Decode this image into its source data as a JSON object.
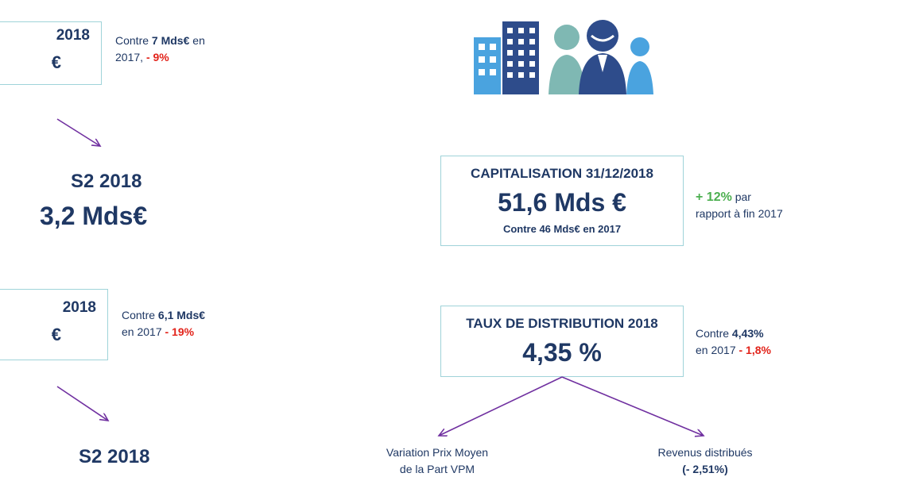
{
  "left": {
    "box1": {
      "title": "2018",
      "value": "€"
    },
    "note1": {
      "prefix": "Contre ",
      "amount": "7 Mds€",
      "mid": " en",
      "line2": "2017, ",
      "delta": "- 9%"
    },
    "s2_1": {
      "label": "S2 2018",
      "value": "3,2 Mds€"
    },
    "box2": {
      "title": "2018",
      "value": "€"
    },
    "note2": {
      "prefix": "Contre ",
      "amount": "6,1 Mds€",
      "line2": "en 2017 ",
      "delta": "- 19%"
    },
    "s2_2": {
      "label": "S2 2018"
    }
  },
  "capitalisation": {
    "title": "CAPITALISATION 31/12/2018",
    "value": "51,6 Mds €",
    "sub": "Contre 46 Mds€ en 2017",
    "note": {
      "delta": "+ 12%",
      "rest1": " par",
      "line2": "rapport à fin 2017"
    }
  },
  "distribution": {
    "title": "TAUX DE DISTRIBUTION 2018",
    "value": "4,35 %",
    "note": {
      "prefix": "Contre ",
      "amount": "4,43%",
      "line2": "en 2017 ",
      "delta": "- 1,8%"
    }
  },
  "branches": {
    "left": {
      "line1": "Variation Prix Moyen",
      "line2": "de la Part VPM"
    },
    "right": {
      "line1": "Revenus distribués",
      "line2": "(- 2,51%)"
    }
  },
  "colors": {
    "navy": "#1f3864",
    "teal_border": "#9fd3d9",
    "red": "#e2231a",
    "green": "#4caf50",
    "arrow": "#7030a0"
  },
  "icons": [
    "buildings-icon",
    "people-icon"
  ]
}
